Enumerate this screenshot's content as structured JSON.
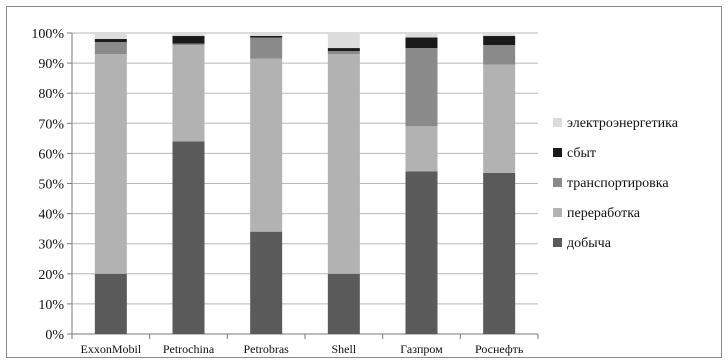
{
  "chart_data": {
    "type": "bar",
    "stacked": true,
    "percent": true,
    "categories": [
      "ExxonMobil",
      "Petrochina",
      "Petrobras",
      "Shell",
      "Газпром",
      "Роснефть"
    ],
    "series": [
      {
        "name": "добыча",
        "color": "#5a5a5a",
        "values": [
          20,
          64,
          34,
          20,
          54,
          53.5
        ]
      },
      {
        "name": "переработка",
        "color": "#b2b2b2",
        "values": [
          73,
          32,
          57.5,
          73,
          15,
          36
        ]
      },
      {
        "name": "транспортировка",
        "color": "#8a8a8a",
        "values": [
          4,
          0.5,
          7,
          1,
          26,
          6.5
        ]
      },
      {
        "name": "сбыт",
        "color": "#1a1a1a",
        "values": [
          1,
          2.5,
          0.5,
          1,
          3.5,
          3
        ]
      },
      {
        "name": "электроэнергетика",
        "color": "#dcdcdc",
        "values": [
          2,
          1,
          1,
          5,
          1.5,
          1
        ]
      }
    ],
    "yticks": [
      "0%",
      "10%",
      "20%",
      "30%",
      "40%",
      "50%",
      "60%",
      "70%",
      "80%",
      "90%",
      "100%"
    ],
    "ylim": [
      0,
      100
    ],
    "grid": true,
    "legend_position": "right",
    "legend_order": [
      "электроэнергетика",
      "сбыт",
      "транспортировка",
      "переработка",
      "добыча"
    ]
  }
}
